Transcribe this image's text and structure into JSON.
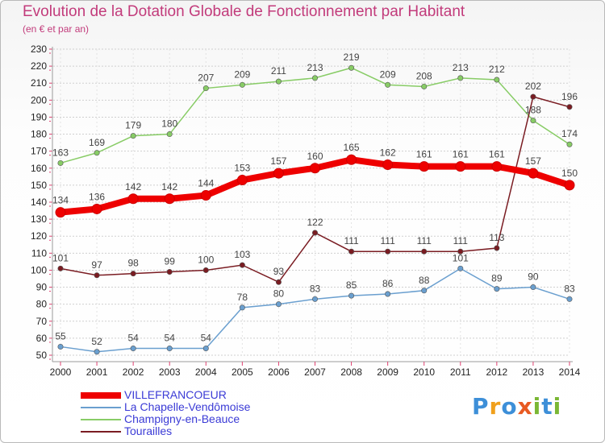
{
  "header": {
    "title": "Evolution de la Dotation Globale de Fonctionnement par Habitant",
    "subtitle": "(en € et par an)"
  },
  "logo": {
    "text": "Proxiti"
  },
  "chart_data": {
    "type": "line",
    "title": "Evolution de la Dotation Globale de Fonctionnement par Habitant",
    "ylabel": "(en € et par an)",
    "xlabel": "",
    "x": [
      2000,
      2001,
      2002,
      2003,
      2004,
      2005,
      2006,
      2007,
      2008,
      2009,
      2010,
      2011,
      2012,
      2013,
      2014
    ],
    "ylim": [
      50,
      230
    ],
    "ystep": 10,
    "grid": "horizontal dashed",
    "legend_position": "bottom-left",
    "series": [
      {
        "name": "VILLEFRANCOEUR",
        "color": "#ee0000",
        "emphasis": true,
        "values": [
          134,
          136,
          142,
          142,
          144,
          153,
          157,
          160,
          165,
          162,
          161,
          161,
          161,
          157,
          150
        ]
      },
      {
        "name": "La Chapelle-Vendômoise",
        "color": "#6a9fcf",
        "emphasis": false,
        "values": [
          55,
          52,
          54,
          54,
          54,
          78,
          80,
          83,
          85,
          86,
          88,
          101,
          89,
          90,
          83
        ]
      },
      {
        "name": "Champigny-en-Beauce",
        "color": "#88cc66",
        "emphasis": false,
        "values": [
          163,
          169,
          179,
          180,
          207,
          209,
          211,
          213,
          219,
          209,
          208,
          213,
          212,
          188,
          174
        ]
      },
      {
        "name": "Tourailles",
        "color": "#7a1c22",
        "emphasis": false,
        "values": [
          101,
          97,
          98,
          99,
          100,
          103,
          93,
          122,
          111,
          111,
          111,
          111,
          113,
          202,
          196
        ]
      }
    ]
  }
}
